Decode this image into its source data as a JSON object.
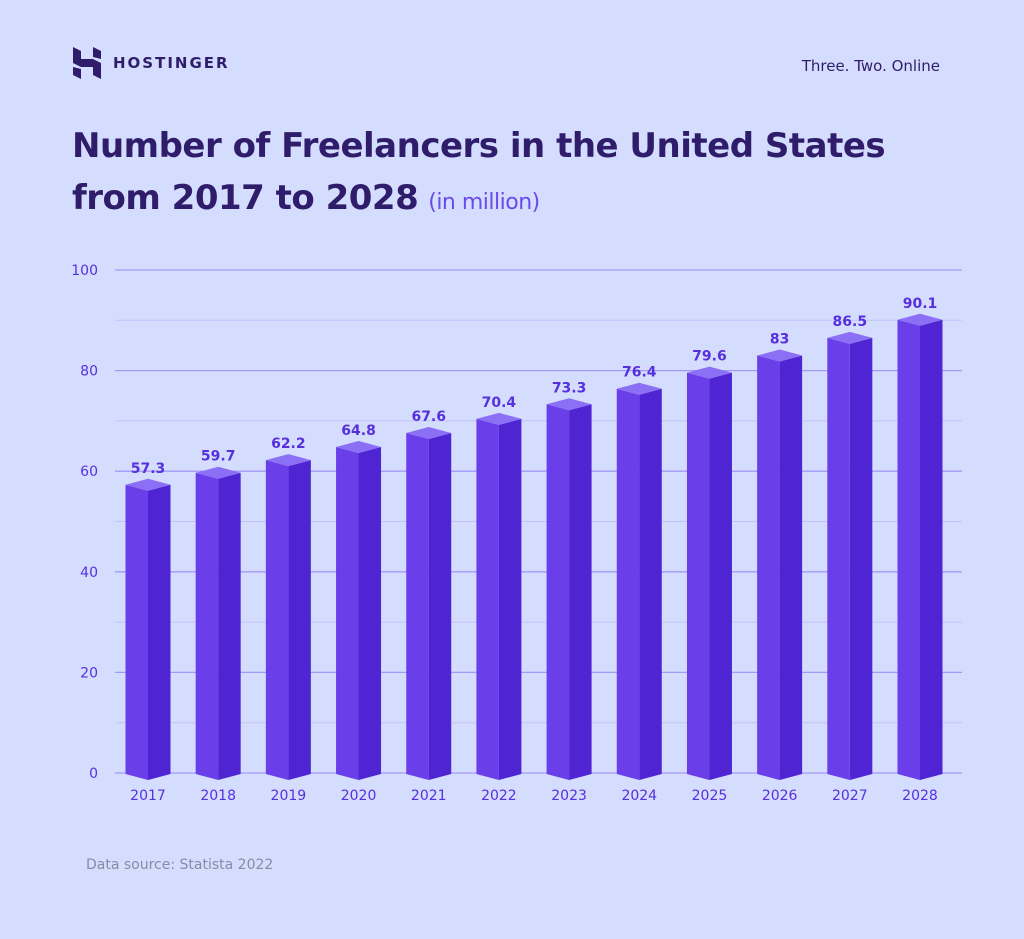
{
  "header": {
    "brand": "HOSTINGER",
    "tagline": "Three. Two. Online",
    "logo_icon": "hostinger-h-logo"
  },
  "title": {
    "main_line1": "Number of Freelancers in the United States",
    "main_line2": "from 2017 to 2028",
    "unit": "(in million)"
  },
  "footer": {
    "source": "Data source: Statista 2022"
  },
  "colors": {
    "background": "#d5ddfe",
    "bar_front": "#6a3fe9",
    "bar_side": "#4f24d2",
    "bar_top": "#8b6ff5",
    "label": "#5630dd",
    "title": "#2f1c6a"
  },
  "chart_data": {
    "type": "bar",
    "style": "3d-column",
    "title": "Number of Freelancers in the United States from 2017 to 2028",
    "ylabel": "",
    "xlabel": "",
    "ylim": [
      0,
      100
    ],
    "yticks": [
      "0",
      "20",
      "40",
      "60",
      "80",
      "100"
    ],
    "grid": true,
    "categories": [
      "2017",
      "2018",
      "2019",
      "2020",
      "2021",
      "2022",
      "2023",
      "2024",
      "2025",
      "2026",
      "2027",
      "2028"
    ],
    "values": [
      57.3,
      59.7,
      62.2,
      64.8,
      67.6,
      70.4,
      73.3,
      76.4,
      79.6,
      83,
      86.5,
      90.1
    ],
    "value_labels": [
      "57.3",
      "59.7",
      "62.2",
      "64.8",
      "67.6",
      "70.4",
      "73.3",
      "76.4",
      "79.6",
      "83",
      "86.5",
      "90.1"
    ]
  }
}
